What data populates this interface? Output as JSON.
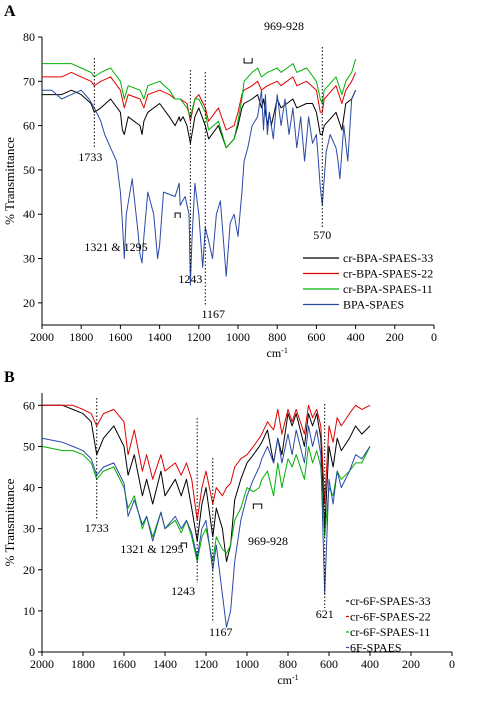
{
  "chart_data": [
    {
      "panel_label": "A",
      "type": "line",
      "ylabel": "% Transmittance",
      "xlabel": "cm-1",
      "xlim": [
        2000,
        0
      ],
      "ylim": [
        15,
        80
      ],
      "x_ticks": [
        2000,
        1800,
        1600,
        1400,
        1200,
        1000,
        800,
        600,
        400,
        200,
        0
      ],
      "y_ticks": [
        20,
        30,
        40,
        50,
        60,
        70,
        80
      ],
      "grid": false,
      "legend_position": "bottom-right",
      "series": [
        {
          "name": "cr-BPA-SPAES-33",
          "color": "#000000",
          "x": [
            2000,
            1900,
            1850,
            1800,
            1750,
            1733,
            1700,
            1650,
            1600,
            1590,
            1580,
            1560,
            1500,
            1490,
            1480,
            1460,
            1400,
            1350,
            1321,
            1300,
            1295,
            1280,
            1260,
            1243,
            1220,
            1200,
            1167,
            1150,
            1100,
            1060,
            1020,
            1000,
            980,
            969,
            928,
            900,
            880,
            870,
            850,
            840,
            830,
            800,
            780,
            720,
            700,
            650,
            620,
            600,
            580,
            570,
            560,
            520,
            500,
            470,
            450,
            420,
            400
          ],
          "y": [
            67,
            67,
            68,
            67,
            65,
            63,
            64,
            66,
            63,
            59,
            58,
            62,
            60,
            58,
            61,
            63,
            65,
            62,
            60,
            62,
            61,
            62,
            60,
            56,
            62,
            64,
            60,
            57,
            60,
            55,
            57,
            60,
            64,
            65,
            66,
            67,
            64,
            66,
            60,
            63,
            60,
            66,
            64,
            66,
            64,
            65,
            65,
            63,
            58,
            58,
            60,
            62,
            63,
            59,
            65,
            66,
            68
          ]
        },
        {
          "name": "cr-BPA-SPAES-22",
          "color": "#e00000",
          "x": [
            2000,
            1900,
            1850,
            1800,
            1750,
            1733,
            1700,
            1650,
            1600,
            1580,
            1560,
            1500,
            1480,
            1460,
            1400,
            1350,
            1321,
            1295,
            1260,
            1243,
            1220,
            1200,
            1167,
            1150,
            1100,
            1060,
            1020,
            1000,
            980,
            969,
            928,
            900,
            880,
            850,
            800,
            780,
            720,
            700,
            650,
            600,
            580,
            570,
            560,
            520,
            500,
            470,
            450,
            420,
            400
          ],
          "y": [
            71,
            71,
            72,
            71,
            70,
            69,
            70,
            71,
            68,
            64,
            67,
            66,
            64,
            67,
            68,
            67,
            66,
            66,
            65,
            61,
            66,
            67,
            64,
            61,
            64,
            59,
            60,
            63,
            67,
            68,
            69,
            70,
            68,
            69,
            70,
            69,
            71,
            69,
            70,
            68,
            63,
            63,
            66,
            68,
            69,
            65,
            68,
            70,
            72
          ]
        },
        {
          "name": "cr-BPA-SPAES-11",
          "color": "#00b000",
          "x": [
            2000,
            1900,
            1850,
            1800,
            1750,
            1733,
            1700,
            1650,
            1600,
            1580,
            1560,
            1500,
            1480,
            1460,
            1400,
            1350,
            1321,
            1295,
            1260,
            1243,
            1220,
            1200,
            1167,
            1150,
            1100,
            1060,
            1020,
            1000,
            980,
            969,
            928,
            900,
            880,
            850,
            800,
            780,
            720,
            700,
            650,
            600,
            580,
            570,
            560,
            520,
            500,
            470,
            450,
            420,
            400
          ],
          "y": [
            74,
            74,
            74,
            73,
            72,
            71,
            72,
            73,
            70,
            66,
            69,
            68,
            66,
            69,
            70,
            68,
            66,
            66,
            64,
            62,
            66,
            66,
            63,
            59,
            61,
            55,
            57,
            61,
            66,
            70,
            72,
            73,
            71,
            72,
            73,
            72,
            74,
            72,
            73,
            70,
            66,
            65,
            68,
            70,
            71,
            67,
            70,
            72,
            75
          ]
        },
        {
          "name": "BPA-SPAES",
          "color": "#2a4aa8",
          "x": [
            2000,
            1950,
            1900,
            1850,
            1800,
            1760,
            1733,
            1700,
            1680,
            1650,
            1620,
            1600,
            1590,
            1580,
            1570,
            1540,
            1510,
            1500,
            1490,
            1480,
            1460,
            1430,
            1410,
            1400,
            1380,
            1321,
            1300,
            1295,
            1270,
            1250,
            1243,
            1235,
            1220,
            1200,
            1180,
            1167,
            1150,
            1130,
            1110,
            1090,
            1060,
            1040,
            1020,
            1000,
            980,
            969,
            950,
            928,
            900,
            880,
            870,
            860,
            850,
            840,
            820,
            800,
            780,
            760,
            740,
            720,
            700,
            680,
            660,
            640,
            620,
            600,
            590,
            580,
            570,
            560,
            550,
            530,
            500,
            490,
            480,
            460,
            440,
            420,
            400
          ],
          "y": [
            68,
            68,
            66,
            67,
            68,
            66,
            64,
            61,
            58,
            55,
            52,
            45,
            38,
            30,
            40,
            48,
            36,
            31,
            29,
            35,
            45,
            40,
            30,
            33,
            45,
            44,
            47,
            42,
            44,
            40,
            24,
            34,
            47,
            40,
            28,
            37,
            34,
            30,
            40,
            43,
            26,
            38,
            40,
            35,
            45,
            52,
            55,
            60,
            62,
            68,
            59,
            67,
            58,
            63,
            57,
            67,
            60,
            66,
            58,
            64,
            55,
            62,
            52,
            62,
            56,
            58,
            52,
            46,
            42,
            48,
            54,
            58,
            55,
            52,
            48,
            60,
            52,
            66,
            68
          ]
        }
      ],
      "annotations": [
        {
          "text": "969-928",
          "x_from": 969,
          "x_to": 928
        },
        {
          "text": "1733",
          "x": 1733
        },
        {
          "text": "1321 & 1295",
          "x_from": 1321,
          "x_to": 1295
        },
        {
          "text": "1243",
          "x": 1243
        },
        {
          "text": "1167",
          "x": 1167
        },
        {
          "text": "570",
          "x": 570
        }
      ]
    },
    {
      "panel_label": "B",
      "type": "line",
      "ylabel": "% Transmittance",
      "xlabel": "cm-1",
      "xlim": [
        2000,
        0
      ],
      "ylim": [
        0,
        63
      ],
      "x_ticks": [
        2000,
        1800,
        1600,
        1400,
        1200,
        1000,
        800,
        600,
        400,
        200,
        0
      ],
      "y_ticks": [
        0,
        10,
        20,
        30,
        40,
        50,
        60
      ],
      "grid": false,
      "legend_position": "bottom-right",
      "series": [
        {
          "name": "cr-6F-SPAES-33",
          "color": "#000000",
          "x": [
            2000,
            1900,
            1850,
            1800,
            1760,
            1733,
            1700,
            1650,
            1600,
            1580,
            1550,
            1510,
            1490,
            1460,
            1420,
            1400,
            1350,
            1321,
            1295,
            1270,
            1243,
            1220,
            1200,
            1167,
            1150,
            1120,
            1100,
            1080,
            1060,
            1030,
            1000,
            969,
            940,
            928,
            900,
            870,
            850,
            830,
            800,
            780,
            760,
            720,
            700,
            680,
            660,
            640,
            621,
            600,
            580,
            560,
            540,
            500,
            470,
            440,
            400
          ],
          "y": [
            60,
            60,
            59,
            58,
            56,
            48,
            52,
            55,
            50,
            43,
            48,
            38,
            42,
            36,
            44,
            38,
            42,
            38,
            42,
            35,
            27,
            36,
            40,
            28,
            35,
            30,
            22,
            26,
            37,
            42,
            46,
            48,
            50,
            51,
            54,
            46,
            52,
            48,
            58,
            55,
            58,
            50,
            58,
            55,
            58,
            52,
            30,
            50,
            45,
            52,
            49,
            52,
            55,
            53,
            55
          ]
        },
        {
          "name": "cr-6F-SPAES-22",
          "color": "#e00000",
          "x": [
            2000,
            1900,
            1850,
            1800,
            1760,
            1733,
            1700,
            1650,
            1600,
            1580,
            1550,
            1510,
            1490,
            1460,
            1420,
            1400,
            1350,
            1321,
            1295,
            1270,
            1243,
            1220,
            1200,
            1167,
            1150,
            1120,
            1100,
            1080,
            1060,
            1030,
            1000,
            969,
            940,
            928,
            900,
            870,
            850,
            830,
            800,
            780,
            760,
            720,
            700,
            680,
            660,
            640,
            621,
            600,
            580,
            560,
            540,
            500,
            470,
            440,
            400
          ],
          "y": [
            60,
            60,
            60,
            59,
            58,
            55,
            58,
            59,
            56,
            48,
            54,
            44,
            48,
            42,
            48,
            44,
            46,
            43,
            46,
            42,
            32,
            40,
            44,
            36,
            40,
            38,
            40,
            41,
            45,
            47,
            48,
            50,
            52,
            53,
            56,
            54,
            59,
            53,
            59,
            56,
            59,
            53,
            60,
            57,
            59,
            55,
            36,
            55,
            51,
            57,
            55,
            58,
            60,
            59,
            60
          ]
        },
        {
          "name": "cr-6F-SPAES-11",
          "color": "#00b000",
          "x": [
            2000,
            1900,
            1850,
            1800,
            1760,
            1733,
            1700,
            1650,
            1600,
            1580,
            1550,
            1510,
            1490,
            1460,
            1420,
            1400,
            1350,
            1321,
            1295,
            1270,
            1243,
            1220,
            1200,
            1167,
            1150,
            1120,
            1100,
            1080,
            1060,
            1030,
            1000,
            969,
            940,
            928,
            900,
            870,
            850,
            830,
            800,
            780,
            760,
            720,
            700,
            680,
            660,
            640,
            621,
            600,
            580,
            560,
            540,
            500,
            470,
            440,
            400
          ],
          "y": [
            50,
            49,
            49,
            48,
            46,
            42,
            44,
            45,
            40,
            35,
            38,
            30,
            33,
            28,
            34,
            30,
            32,
            29,
            32,
            28,
            22,
            28,
            30,
            22,
            28,
            25,
            24,
            26,
            32,
            35,
            40,
            39,
            40,
            42,
            44,
            38,
            46,
            40,
            47,
            45,
            48,
            42,
            50,
            46,
            49,
            45,
            28,
            40,
            38,
            44,
            42,
            44,
            46,
            46,
            50
          ]
        },
        {
          "name": "6F-SPAES",
          "color": "#2a4aa8",
          "x": [
            2000,
            1900,
            1850,
            1800,
            1760,
            1733,
            1700,
            1650,
            1600,
            1580,
            1550,
            1510,
            1490,
            1460,
            1420,
            1400,
            1350,
            1321,
            1295,
            1270,
            1243,
            1220,
            1200,
            1167,
            1150,
            1120,
            1100,
            1080,
            1060,
            1030,
            1000,
            969,
            940,
            928,
            900,
            870,
            850,
            830,
            800,
            780,
            760,
            720,
            700,
            680,
            660,
            640,
            621,
            600,
            580,
            560,
            540,
            500,
            470,
            440,
            400
          ],
          "y": [
            52,
            51,
            50,
            49,
            47,
            43,
            45,
            46,
            41,
            33,
            37,
            31,
            33,
            27,
            34,
            30,
            33,
            30,
            32,
            29,
            23,
            30,
            32,
            20,
            26,
            14,
            6,
            10,
            22,
            32,
            38,
            42,
            45,
            47,
            50,
            46,
            52,
            46,
            53,
            48,
            54,
            46,
            55,
            50,
            54,
            48,
            14,
            42,
            36,
            44,
            40,
            44,
            48,
            47,
            50
          ]
        }
      ],
      "annotations": [
        {
          "text": "1733",
          "x": 1733
        },
        {
          "text": "1321 & 1295",
          "x_from": 1321,
          "x_to": 1295
        },
        {
          "text": "969-928",
          "x_from": 969,
          "x_to": 928
        },
        {
          "text": "1243",
          "x": 1243
        },
        {
          "text": "1167",
          "x": 1167
        },
        {
          "text": "621",
          "x": 621
        }
      ]
    }
  ]
}
